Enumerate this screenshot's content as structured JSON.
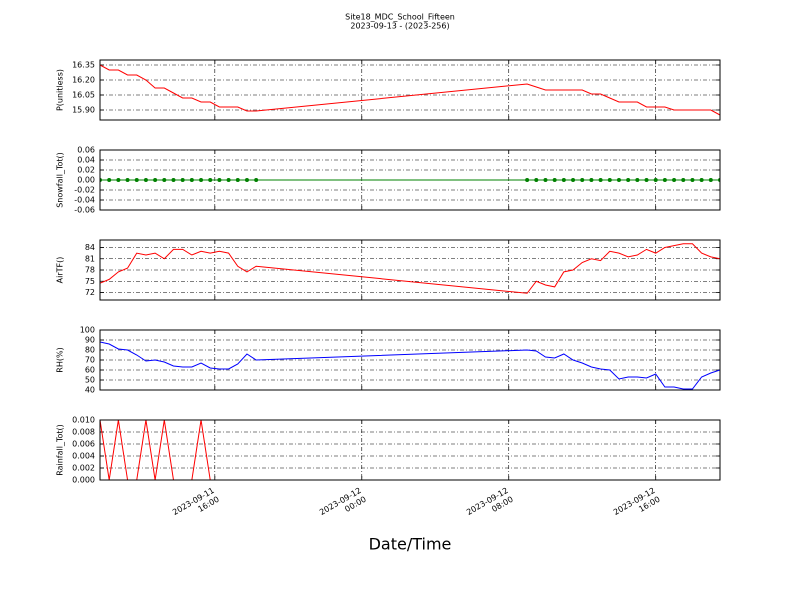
{
  "chart_data": [
    {
      "type": "line",
      "title": "Site18_MDC_School_Fifteen",
      "subtitle": "2023-09-13 - (2023-256)",
      "ylabel": "P(unitless)",
      "x": [
        "2023-09-11 09:45",
        "2023-09-11 10:15",
        "2023-09-11 10:45",
        "2023-09-11 11:15",
        "2023-09-11 11:45",
        "2023-09-11 12:15",
        "2023-09-11 12:45",
        "2023-09-11 13:15",
        "2023-09-11 13:45",
        "2023-09-11 14:15",
        "2023-09-11 14:45",
        "2023-09-11 15:15",
        "2023-09-11 15:45",
        "2023-09-11 16:15",
        "2023-09-11 16:45",
        "2023-09-11 17:15",
        "2023-09-11 17:45",
        "2023-09-11 18:15",
        "2023-09-12 09:00",
        "2023-09-12 09:30",
        "2023-09-12 10:00",
        "2023-09-12 10:30",
        "2023-09-12 11:00",
        "2023-09-12 11:30",
        "2023-09-12 12:00",
        "2023-09-12 12:30",
        "2023-09-12 13:00",
        "2023-09-12 13:30",
        "2023-09-12 14:00",
        "2023-09-12 14:30",
        "2023-09-12 15:00",
        "2023-09-12 15:30",
        "2023-09-12 16:00",
        "2023-09-12 16:30",
        "2023-09-12 17:00",
        "2023-09-12 17:30",
        "2023-09-12 18:00",
        "2023-09-12 18:30",
        "2023-09-12 19:00",
        "2023-09-12 19:30"
      ],
      "values": [
        16.35,
        16.3,
        16.3,
        16.25,
        16.25,
        16.2,
        16.12,
        16.12,
        16.07,
        16.02,
        16.02,
        15.98,
        15.98,
        15.93,
        15.93,
        15.93,
        15.89,
        15.89,
        16.16,
        16.13,
        16.1,
        16.1,
        16.1,
        16.1,
        16.1,
        16.06,
        16.06,
        16.02,
        15.98,
        15.98,
        15.98,
        15.93,
        15.93,
        15.93,
        15.9,
        15.9,
        15.9,
        15.9,
        15.9,
        15.85
      ],
      "color": "#ff0000",
      "ylim": [
        15.8,
        16.4
      ],
      "yticks": [
        {
          "value": 15.9,
          "label": "15.90"
        },
        16.05,
        {
          "value": 16.2,
          "label": "16.20"
        },
        16.35
      ],
      "grid": true
    },
    {
      "type": "line",
      "ylabel": "Snowfall_Tot()",
      "marker": true,
      "x": [
        "2023-09-11 09:45",
        "2023-09-11 10:15",
        "2023-09-11 10:45",
        "2023-09-11 11:15",
        "2023-09-11 11:45",
        "2023-09-11 12:15",
        "2023-09-11 12:45",
        "2023-09-11 13:15",
        "2023-09-11 13:45",
        "2023-09-11 14:15",
        "2023-09-11 14:45",
        "2023-09-11 15:15",
        "2023-09-11 15:45",
        "2023-09-11 16:15",
        "2023-09-11 16:45",
        "2023-09-11 17:15",
        "2023-09-11 17:45",
        "2023-09-11 18:15",
        "2023-09-12 09:00",
        "2023-09-12 09:30",
        "2023-09-12 10:00",
        "2023-09-12 10:30",
        "2023-09-12 11:00",
        "2023-09-12 11:30",
        "2023-09-12 12:00",
        "2023-09-12 12:30",
        "2023-09-12 13:00",
        "2023-09-12 13:30",
        "2023-09-12 14:00",
        "2023-09-12 14:30",
        "2023-09-12 15:00",
        "2023-09-12 15:30",
        "2023-09-12 16:00",
        "2023-09-12 16:30",
        "2023-09-12 17:00",
        "2023-09-12 17:30",
        "2023-09-12 18:00",
        "2023-09-12 18:30",
        "2023-09-12 19:00",
        "2023-09-12 19:30"
      ],
      "values": [
        0,
        0,
        0,
        0,
        0,
        0,
        0,
        0,
        0,
        0,
        0,
        0,
        0,
        0,
        0,
        0,
        0,
        0,
        0,
        0,
        0,
        0,
        0,
        0,
        0,
        0,
        0,
        0,
        0,
        0,
        0,
        0,
        0,
        0,
        0,
        0,
        0,
        0,
        0,
        0
      ],
      "color": "#008000",
      "ylim": [
        -0.06,
        0.06
      ],
      "yticks": [
        -0.06,
        -0.04,
        -0.02,
        {
          "value": 0,
          "label": "0.00"
        },
        0.02,
        0.04,
        0.06
      ],
      "grid": true
    },
    {
      "type": "line",
      "ylabel": "AirTF()",
      "x": [
        "2023-09-11 09:45",
        "2023-09-11 10:15",
        "2023-09-11 10:45",
        "2023-09-11 11:15",
        "2023-09-11 11:45",
        "2023-09-11 12:15",
        "2023-09-11 12:45",
        "2023-09-11 13:15",
        "2023-09-11 13:45",
        "2023-09-11 14:15",
        "2023-09-11 14:45",
        "2023-09-11 15:15",
        "2023-09-11 15:45",
        "2023-09-11 16:15",
        "2023-09-11 16:45",
        "2023-09-11 17:15",
        "2023-09-11 17:45",
        "2023-09-11 18:15",
        "2023-09-12 09:00",
        "2023-09-12 09:30",
        "2023-09-12 10:00",
        "2023-09-12 10:30",
        "2023-09-12 11:00",
        "2023-09-12 11:30",
        "2023-09-12 12:00",
        "2023-09-12 12:30",
        "2023-09-12 13:00",
        "2023-09-12 13:30",
        "2023-09-12 14:00",
        "2023-09-12 14:30",
        "2023-09-12 15:00",
        "2023-09-12 15:30",
        "2023-09-12 16:00",
        "2023-09-12 16:30",
        "2023-09-12 17:00",
        "2023-09-12 17:30",
        "2023-09-12 18:00",
        "2023-09-12 18:30",
        "2023-09-12 19:00",
        "2023-09-12 19:30"
      ],
      "values": [
        74.5,
        75.5,
        77.5,
        78.5,
        82.5,
        82,
        82.5,
        81,
        83.5,
        83.5,
        82,
        83,
        82.5,
        83,
        82.5,
        79,
        77.5,
        79,
        71.8,
        75,
        74,
        73.5,
        77.5,
        78,
        80,
        81,
        80.5,
        83,
        82.5,
        81.5,
        82,
        83.5,
        82.5,
        84,
        84.5,
        85,
        85,
        82.5,
        81.5,
        81
      ],
      "color": "#ff0000",
      "ylim": [
        70,
        86
      ],
      "yticks": [
        72,
        75,
        78,
        81,
        84
      ],
      "grid": true
    },
    {
      "type": "line",
      "ylabel": "RH(%)",
      "x": [
        "2023-09-11 09:45",
        "2023-09-11 10:15",
        "2023-09-11 10:45",
        "2023-09-11 11:15",
        "2023-09-11 11:45",
        "2023-09-11 12:15",
        "2023-09-11 12:45",
        "2023-09-11 13:15",
        "2023-09-11 13:45",
        "2023-09-11 14:15",
        "2023-09-11 14:45",
        "2023-09-11 15:15",
        "2023-09-11 15:45",
        "2023-09-11 16:15",
        "2023-09-11 16:45",
        "2023-09-11 17:15",
        "2023-09-11 17:45",
        "2023-09-11 18:15",
        "2023-09-12 09:00",
        "2023-09-12 09:30",
        "2023-09-12 10:00",
        "2023-09-12 10:30",
        "2023-09-12 11:00",
        "2023-09-12 11:30",
        "2023-09-12 12:00",
        "2023-09-12 12:30",
        "2023-09-12 13:00",
        "2023-09-12 13:30",
        "2023-09-12 14:00",
        "2023-09-12 14:30",
        "2023-09-12 15:00",
        "2023-09-12 15:30",
        "2023-09-12 16:00",
        "2023-09-12 16:30",
        "2023-09-12 17:00",
        "2023-09-12 17:30",
        "2023-09-12 18:00",
        "2023-09-12 18:30",
        "2023-09-12 19:00",
        "2023-09-12 19:30"
      ],
      "values": [
        88,
        86,
        81,
        80,
        75,
        69,
        70,
        68,
        64,
        63,
        63,
        67,
        62,
        61,
        61,
        66,
        76,
        70,
        80,
        79,
        73,
        72,
        76,
        70,
        67,
        63,
        61,
        60,
        51,
        53,
        53,
        52,
        56,
        43,
        43,
        41,
        41,
        53,
        57,
        60
      ],
      "color": "#0000ff",
      "ylim": [
        40,
        100
      ],
      "yticks": [
        40,
        50,
        60,
        70,
        80,
        90,
        100
      ],
      "grid": true
    },
    {
      "type": "line",
      "ylabel": "Rainfall_Tot()",
      "xlabel": "Date/Time",
      "x": [
        "2023-09-11 09:45",
        "2023-09-11 10:15",
        "2023-09-11 10:45",
        "2023-09-11 11:15",
        "2023-09-11 11:45",
        "2023-09-11 12:15",
        "2023-09-11 12:45",
        "2023-09-11 13:15",
        "2023-09-11 13:45",
        "2023-09-11 14:15",
        "2023-09-11 14:45",
        "2023-09-11 15:15",
        "2023-09-11 15:45",
        "2023-09-11 16:15",
        "2023-09-11 16:45",
        "2023-09-11 17:15",
        "2023-09-11 17:45",
        "2023-09-11 18:15",
        "2023-09-12 09:00",
        "2023-09-12 09:30",
        "2023-09-12 10:00",
        "2023-09-12 10:30",
        "2023-09-12 11:00",
        "2023-09-12 11:30",
        "2023-09-12 12:00",
        "2023-09-12 12:30",
        "2023-09-12 13:00",
        "2023-09-12 13:30",
        "2023-09-12 14:00",
        "2023-09-12 14:30",
        "2023-09-12 15:00",
        "2023-09-12 15:30",
        "2023-09-12 16:00",
        "2023-09-12 16:30",
        "2023-09-12 17:00",
        "2023-09-12 17:30",
        "2023-09-12 18:00",
        "2023-09-12 18:30",
        "2023-09-12 19:00",
        "2023-09-12 19:30"
      ],
      "values": [
        0.01,
        0,
        0.01,
        0,
        0,
        0.01,
        0,
        0.01,
        0,
        0,
        0,
        0.01,
        0,
        0,
        0,
        0,
        0,
        0,
        0,
        0,
        0,
        0,
        0,
        0,
        0,
        0,
        0,
        0,
        0,
        0,
        0,
        0,
        0,
        0,
        0,
        0,
        0,
        0,
        0,
        0
      ],
      "color": "#ff0000",
      "ylim": [
        0,
        0.01
      ],
      "yticks": [
        {
          "value": 0,
          "label": "0.000"
        },
        {
          "value": 0.002,
          "label": "0.002"
        },
        {
          "value": 0.004,
          "label": "0.004"
        },
        {
          "value": 0.006,
          "label": "0.006"
        },
        {
          "value": 0.008,
          "label": "0.008"
        },
        {
          "value": 0.01,
          "label": "0.010"
        }
      ],
      "xlim": [
        "2023-09-11 09:45",
        "2023-09-12 19:30"
      ],
      "xticks": [
        {
          "value": "2023-09-11 16:00",
          "label": "2023-09-11\n16:00"
        },
        {
          "value": "2023-09-12 00:00",
          "label": "2023-09-12\n00:00"
        },
        {
          "value": "2023-09-12 08:00",
          "label": "2023-09-12\n08:00"
        },
        {
          "value": "2023-09-12 16:00",
          "label": "2023-09-12\n16:00"
        }
      ],
      "grid": true
    }
  ]
}
